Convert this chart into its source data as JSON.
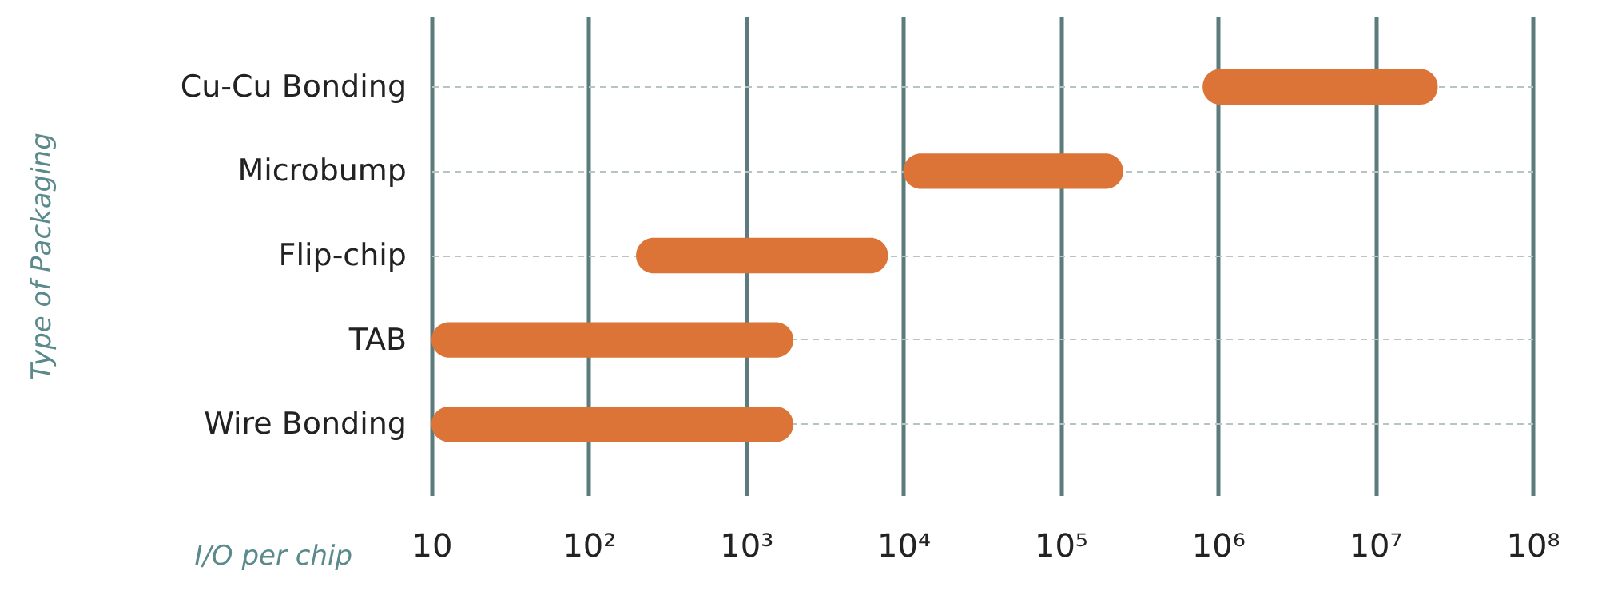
{
  "chart_data": {
    "type": "bar",
    "orientation": "horizontal",
    "log": "x",
    "xlabel": "I/O per chip",
    "ylabel": "Type of Packaging",
    "categories": [
      "Cu-Cu Bonding",
      "Microbump",
      "Flip-chip",
      "TAB",
      "Wire Bonding"
    ],
    "base": [
      800000,
      10000,
      200,
      10,
      10
    ],
    "values": [
      24200000,
      240000,
      7800,
      1990,
      1990
    ],
    "color": "#db7436",
    "xlim": [
      10,
      100000000
    ],
    "xticks": [
      10,
      {
        "value": 100,
        "label": "10²"
      },
      {
        "value": 1000,
        "label": "10³"
      },
      {
        "value": 10000,
        "label": "10⁴"
      },
      {
        "value": 100000,
        "label": "10⁵"
      },
      {
        "value": 1000000,
        "label": "10⁶"
      },
      {
        "value": 10000000,
        "label": "10⁷"
      },
      {
        "value": 100000000,
        "label": "10⁸"
      }
    ],
    "grid": true
  }
}
